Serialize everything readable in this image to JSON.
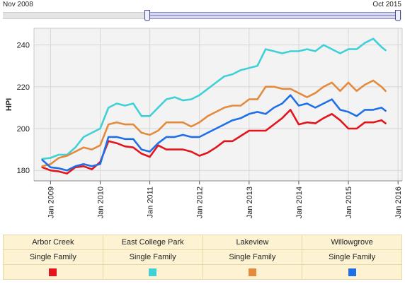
{
  "range_slider": {
    "start_label": "Nov 2008",
    "end_label": "Oct 2015"
  },
  "legend": [
    {
      "name": "Arbor Creek",
      "type": "Single Family",
      "color": "#e3141c"
    },
    {
      "name": "East College Park",
      "type": "Single Family",
      "color": "#3fd0d8"
    },
    {
      "name": "Lakeview",
      "type": "Single Family",
      "color": "#e48a3c"
    },
    {
      "name": "Willowgrove",
      "type": "Single Family",
      "color": "#1f6fe8"
    }
  ],
  "chart_data": {
    "type": "line",
    "title": "",
    "xlabel": "",
    "ylabel": "HPI",
    "ylim": [
      175,
      248
    ],
    "xlim": [
      "2008-09",
      "2016-02"
    ],
    "yticks": [
      180,
      200,
      220,
      240
    ],
    "xticks": [
      "Jan 2009",
      "Jan 2010",
      "Jan 2011",
      "Jan 2012",
      "Jan 2013",
      "Jan 2014",
      "Jan 2015",
      "Jan 2016"
    ],
    "grid": true,
    "x": [
      "2008-11",
      "2009-01",
      "2009-03",
      "2009-05",
      "2009-07",
      "2009-09",
      "2009-11",
      "2010-01",
      "2010-03",
      "2010-05",
      "2010-07",
      "2010-09",
      "2010-11",
      "2011-01",
      "2011-03",
      "2011-05",
      "2011-07",
      "2011-09",
      "2011-11",
      "2012-01",
      "2012-03",
      "2012-05",
      "2012-07",
      "2012-09",
      "2012-11",
      "2013-01",
      "2013-03",
      "2013-05",
      "2013-07",
      "2013-09",
      "2013-11",
      "2014-01",
      "2014-03",
      "2014-05",
      "2014-07",
      "2014-09",
      "2014-11",
      "2015-01",
      "2015-03",
      "2015-05",
      "2015-07",
      "2015-09",
      "2015-10"
    ],
    "series": [
      {
        "name": "Arbor Creek",
        "values": [
          181.5,
          180,
          179.5,
          178.5,
          181.5,
          182,
          180.5,
          184,
          194,
          193,
          191.5,
          191,
          188,
          186.5,
          192,
          190,
          190,
          190,
          189,
          187,
          188.5,
          191,
          194,
          194,
          196.5,
          199,
          199,
          199,
          202,
          205,
          209,
          202,
          203,
          202.5,
          205,
          207,
          204,
          200,
          200,
          203,
          203,
          204,
          202.5
        ]
      },
      {
        "name": "East College Park",
        "values": [
          185.5,
          186,
          187.5,
          187.5,
          191,
          196,
          198,
          200,
          210,
          212,
          211,
          212,
          206,
          206,
          210,
          214,
          215,
          213.5,
          214,
          216,
          219,
          222,
          225,
          226,
          228,
          229,
          230,
          238,
          237,
          236,
          237,
          237,
          238,
          237,
          240,
          238,
          236,
          238,
          238,
          241,
          243,
          239,
          237.5
        ]
      },
      {
        "name": "Lakeview",
        "values": [
          182,
          183,
          186,
          187,
          189,
          191,
          190,
          192,
          202,
          203,
          202,
          202,
          198,
          197,
          199,
          203,
          203,
          203,
          201,
          203,
          206,
          208,
          210,
          211,
          211,
          214,
          214,
          220,
          220,
          219,
          219,
          217,
          215,
          217,
          220,
          222,
          218,
          222,
          218,
          221,
          223,
          220,
          218
        ]
      },
      {
        "name": "Willowgrove",
        "values": [
          185,
          181.5,
          181,
          180,
          182,
          183,
          182,
          183,
          196,
          196,
          195,
          195,
          190,
          189,
          193,
          196,
          196,
          197,
          196,
          196,
          198,
          200,
          202,
          204,
          205,
          207,
          208,
          207,
          210,
          212,
          216,
          211,
          212,
          210,
          212,
          214,
          209,
          208,
          206,
          209,
          209,
          210,
          208.5
        ]
      }
    ]
  }
}
